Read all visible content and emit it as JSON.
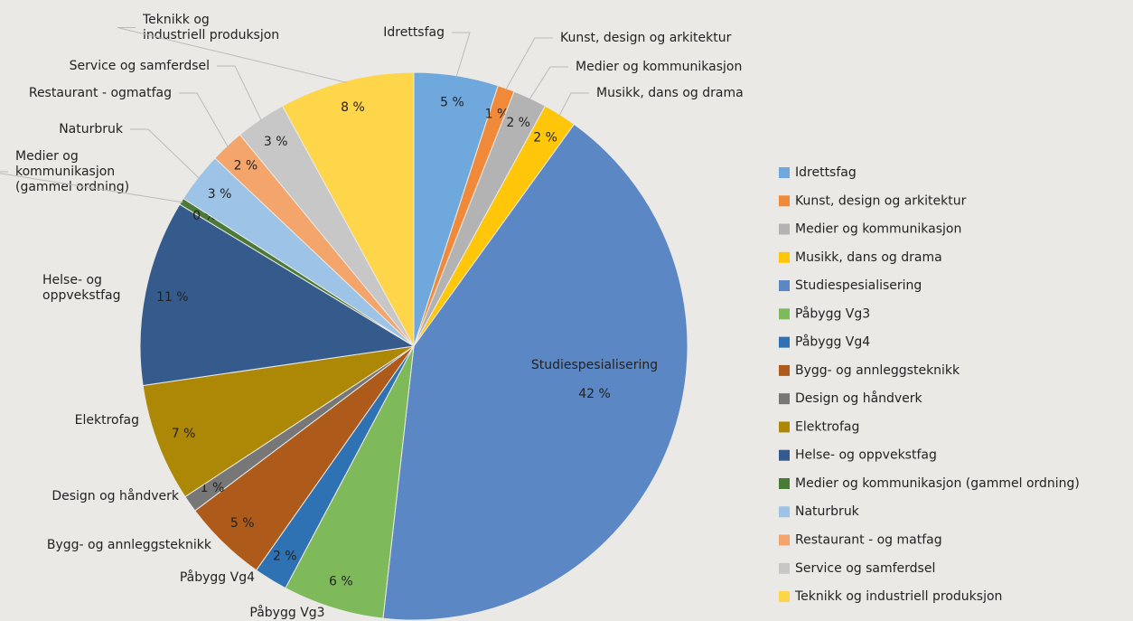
{
  "chart_data": {
    "type": "pie",
    "categories": [
      "Idrettsfag",
      "Kunst, design og arkitektur",
      "Medier og kommunikasjon",
      "Musikk, dans og drama",
      "Studiespesialisering",
      "Påbygg Vg3",
      "Påbygg Vg4",
      "Bygg- og annleggsteknikk",
      "Design og håndverk",
      "Elektrofag",
      "Helse- og oppvekstfag",
      "Medier og kommunikasjon (gammel ordning)",
      "Naturbruk",
      "Restaurant - og matfag",
      "Service og samferdsel",
      "Teknikk og industriell produksjon"
    ],
    "slice_labels": [
      [
        "Idrettsfag"
      ],
      [
        "Kunst, design og arkitektur"
      ],
      [
        "Medier og kommunikasjon"
      ],
      [
        "Musikk, dans og drama"
      ],
      [
        "Studiespesialisering"
      ],
      [
        "Påbygg Vg3"
      ],
      [
        "Påbygg Vg4"
      ],
      [
        "Bygg- og annleggsteknikk"
      ],
      [
        "Design og håndverk"
      ],
      [
        "Elektrofag"
      ],
      [
        "Helse- og",
        "oppvekstfag"
      ],
      [
        "Medier og",
        "kommunikasjon",
        "(gammel ordning)"
      ],
      [
        "Naturbruk"
      ],
      [
        "Restaurant - ogmatfag"
      ],
      [
        "Service og samferdsel"
      ],
      [
        "Teknikk og",
        "industriell produksjon"
      ]
    ],
    "values": [
      5,
      1,
      2,
      2,
      42,
      6,
      2,
      5,
      1,
      7,
      11,
      0.4,
      3,
      2,
      3,
      8
    ],
    "value_labels": [
      "5 %",
      "1 %",
      "2 %",
      "2 %",
      "42 %",
      "6 %",
      "2 %",
      "5 %",
      "1 %",
      "7 %",
      "11 %",
      "0 %",
      "3 %",
      "2 %",
      "3 %",
      "8 %"
    ],
    "colors": [
      "#6fa8dc",
      "#f08a3a",
      "#b3b3b3",
      "#ffc60a",
      "#5b87c5",
      "#7fba5a",
      "#2e72b3",
      "#ad5a1a",
      "#777777",
      "#ad8806",
      "#355b8d",
      "#4b7a38",
      "#9dc3e6",
      "#f4a56c",
      "#c7c7c7",
      "#ffd54a"
    ],
    "legend": "right"
  }
}
